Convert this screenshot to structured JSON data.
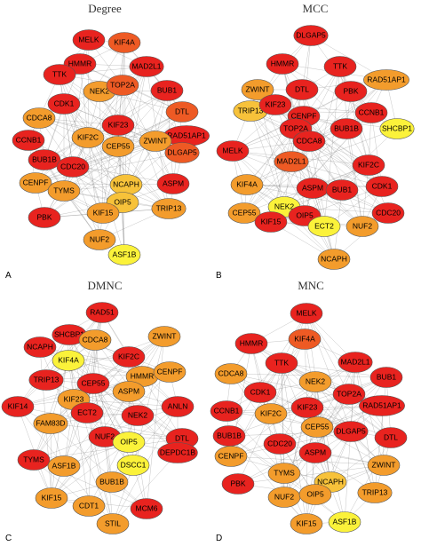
{
  "panels": [
    {
      "letter": "A",
      "title": "Degree",
      "nodes": [
        {
          "label": "MELK",
          "color": "#e8231f"
        },
        {
          "label": "KIF4A",
          "color": "#ee5a24"
        },
        {
          "label": "HMMR",
          "color": "#e8231f"
        },
        {
          "label": "MAD2L1",
          "color": "#e8231f"
        },
        {
          "label": "TTK",
          "color": "#e8231f"
        },
        {
          "label": "NEK2",
          "color": "#f39c2c"
        },
        {
          "label": "TOP2A",
          "color": "#ee5a24"
        },
        {
          "label": "BUB1",
          "color": "#e8231f"
        },
        {
          "label": "CDK1",
          "color": "#e8231f"
        },
        {
          "label": "DTL",
          "color": "#ee5a24"
        },
        {
          "label": "CDCA8",
          "color": "#f39c2c"
        },
        {
          "label": "KIF23",
          "color": "#e8231f"
        },
        {
          "label": "RAD51AP1",
          "color": "#e8231f"
        },
        {
          "label": "CCNB1",
          "color": "#e8231f"
        },
        {
          "label": "KIF2C",
          "color": "#f39c2c"
        },
        {
          "label": "CEP55",
          "color": "#f39c2c"
        },
        {
          "label": "ZWINT",
          "color": "#f39c2c"
        },
        {
          "label": "DLGAP5",
          "color": "#ee5a24"
        },
        {
          "label": "BUB1B",
          "color": "#e8231f"
        },
        {
          "label": "CDC20",
          "color": "#e8231f"
        },
        {
          "label": "NCAPH",
          "color": "#f7c23a"
        },
        {
          "label": "ASPM",
          "color": "#e8231f"
        },
        {
          "label": "CENPF",
          "color": "#f39c2c"
        },
        {
          "label": "TYMS",
          "color": "#f39c2c"
        },
        {
          "label": "OIP5",
          "color": "#f7c23a"
        },
        {
          "label": "KIF15",
          "color": "#f39c2c"
        },
        {
          "label": "PBK",
          "color": "#e8231f"
        },
        {
          "label": "TRIP13",
          "color": "#f39c2c"
        },
        {
          "label": "NUF2",
          "color": "#f39c2c"
        },
        {
          "label": "ASF1B",
          "color": "#fbf23a"
        }
      ]
    },
    {
      "letter": "B",
      "title": "MCC",
      "nodes": [
        {
          "label": "DLGAP5",
          "color": "#e8231f"
        },
        {
          "label": "HMMR",
          "color": "#e8231f"
        },
        {
          "label": "TTK",
          "color": "#e8231f"
        },
        {
          "label": "RAD51AP1",
          "color": "#f39c2c"
        },
        {
          "label": "ZWINT",
          "color": "#f39c2c"
        },
        {
          "label": "DTL",
          "color": "#e8231f"
        },
        {
          "label": "PBK",
          "color": "#e8231f"
        },
        {
          "label": "TRIP13",
          "color": "#f7c23a"
        },
        {
          "label": "KIF23",
          "color": "#e8231f"
        },
        {
          "label": "CCNB1",
          "color": "#e8231f"
        },
        {
          "label": "CENPF",
          "color": "#e8231f"
        },
        {
          "label": "TOP2A",
          "color": "#e8231f"
        },
        {
          "label": "BUB1B",
          "color": "#e8231f"
        },
        {
          "label": "SHCBP1",
          "color": "#fbf23a"
        },
        {
          "label": "CDCA8",
          "color": "#e8231f"
        },
        {
          "label": "MELK",
          "color": "#e8231f"
        },
        {
          "label": "MAD2L1",
          "color": "#ee5a24"
        },
        {
          "label": "KIF2C",
          "color": "#e8231f"
        },
        {
          "label": "CDK1",
          "color": "#e8231f"
        },
        {
          "label": "KIF4A",
          "color": "#f39c2c"
        },
        {
          "label": "ASPM",
          "color": "#e8231f"
        },
        {
          "label": "BUB1",
          "color": "#e8231f"
        },
        {
          "label": "CDC20",
          "color": "#e8231f"
        },
        {
          "label": "NEK2",
          "color": "#fbf23a"
        },
        {
          "label": "CEP55",
          "color": "#f39c2c"
        },
        {
          "label": "KIF15",
          "color": "#e8231f"
        },
        {
          "label": "OIP5",
          "color": "#e8231f"
        },
        {
          "label": "ECT2",
          "color": "#fbf23a"
        },
        {
          "label": "NUF2",
          "color": "#f39c2c"
        },
        {
          "label": "NCAPH",
          "color": "#f39c2c"
        }
      ]
    },
    {
      "letter": "C",
      "title": "DMNC",
      "nodes": [
        {
          "label": "RAD51",
          "color": "#e8231f"
        },
        {
          "label": "SHCBP1",
          "color": "#e8231f"
        },
        {
          "label": "CDCA8",
          "color": "#f39c2c"
        },
        {
          "label": "ZWINT",
          "color": "#f39c2c"
        },
        {
          "label": "NCAPH",
          "color": "#e8231f"
        },
        {
          "label": "KIF4A",
          "color": "#fbf23a"
        },
        {
          "label": "KIF2C",
          "color": "#e8231f"
        },
        {
          "label": "TRIP13",
          "color": "#e8231f"
        },
        {
          "label": "CEP55",
          "color": "#e8231f"
        },
        {
          "label": "HMMR",
          "color": "#f39c2c"
        },
        {
          "label": "CENPF",
          "color": "#f39c2c"
        },
        {
          "label": "ASPM",
          "color": "#f39c2c"
        },
        {
          "label": "KIF14",
          "color": "#e8231f"
        },
        {
          "label": "KIF23",
          "color": "#f39c2c"
        },
        {
          "label": "ECT2",
          "color": "#e8231f"
        },
        {
          "label": "NEK2",
          "color": "#e8231f"
        },
        {
          "label": "ANLN",
          "color": "#e8231f"
        },
        {
          "label": "FAM83D",
          "color": "#f39c2c"
        },
        {
          "label": "NUF2",
          "color": "#e8231f"
        },
        {
          "label": "OIP5",
          "color": "#fbf23a"
        },
        {
          "label": "DTL",
          "color": "#e8231f"
        },
        {
          "label": "DEPDC1B",
          "color": "#e8231f"
        },
        {
          "label": "TYMS",
          "color": "#e8231f"
        },
        {
          "label": "ASF1B",
          "color": "#f39c2c"
        },
        {
          "label": "DSCC1",
          "color": "#fbf23a"
        },
        {
          "label": "BUB1B",
          "color": "#f39c2c"
        },
        {
          "label": "KIF15",
          "color": "#f39c2c"
        },
        {
          "label": "CDT1",
          "color": "#f39c2c"
        },
        {
          "label": "MCM6",
          "color": "#e8231f"
        },
        {
          "label": "STIL",
          "color": "#f39c2c"
        }
      ]
    },
    {
      "letter": "D",
      "title": "MNC",
      "nodes": [
        {
          "label": "MELK",
          "color": "#e8231f"
        },
        {
          "label": "HMMR",
          "color": "#e8231f"
        },
        {
          "label": "KIF4A",
          "color": "#ee5a24"
        },
        {
          "label": "MAD2L1",
          "color": "#e8231f"
        },
        {
          "label": "TTK",
          "color": "#e8231f"
        },
        {
          "label": "BUB1",
          "color": "#e8231f"
        },
        {
          "label": "CDCA8",
          "color": "#f39c2c"
        },
        {
          "label": "NEK2",
          "color": "#f39c2c"
        },
        {
          "label": "TOP2A",
          "color": "#e8231f"
        },
        {
          "label": "CDK1",
          "color": "#e8231f"
        },
        {
          "label": "RAD51AP1",
          "color": "#e8231f"
        },
        {
          "label": "CCNB1",
          "color": "#e8231f"
        },
        {
          "label": "KIF2C",
          "color": "#f39c2c"
        },
        {
          "label": "KIF23",
          "color": "#e8231f"
        },
        {
          "label": "CEP55",
          "color": "#f39c2c"
        },
        {
          "label": "DLGAP5",
          "color": "#e8231f"
        },
        {
          "label": "BUB1B",
          "color": "#e8231f"
        },
        {
          "label": "CDC20",
          "color": "#e8231f"
        },
        {
          "label": "DTL",
          "color": "#e8231f"
        },
        {
          "label": "ASPM",
          "color": "#e8231f"
        },
        {
          "label": "ZWINT",
          "color": "#f39c2c"
        },
        {
          "label": "CENPF",
          "color": "#f39c2c"
        },
        {
          "label": "TYMS",
          "color": "#f39c2c"
        },
        {
          "label": "NCAPH",
          "color": "#f7c23a"
        },
        {
          "label": "PBK",
          "color": "#e8231f"
        },
        {
          "label": "NUF2",
          "color": "#f39c2c"
        },
        {
          "label": "OIP5",
          "color": "#f39c2c"
        },
        {
          "label": "TRIP13",
          "color": "#f39c2c"
        },
        {
          "label": "KIF15",
          "color": "#f39c2c"
        },
        {
          "label": "ASF1B",
          "color": "#fbf23a"
        }
      ]
    }
  ]
}
